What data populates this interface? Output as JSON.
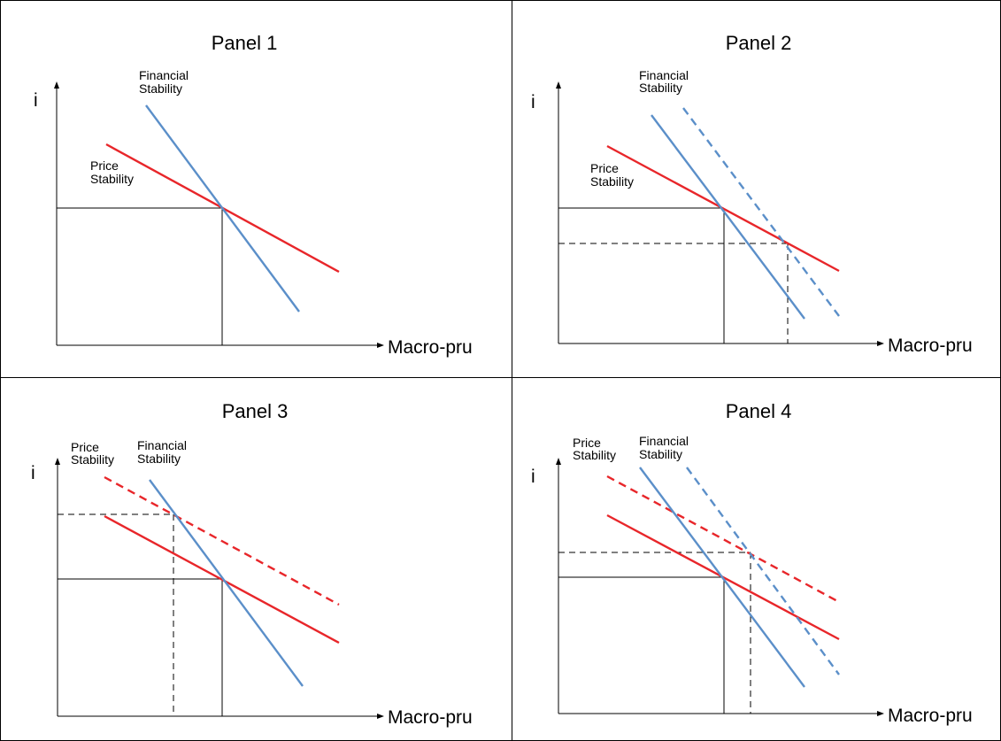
{
  "figure": {
    "colors": {
      "price_stability": "#e8262a",
      "financial_stability": "#5b8fc9",
      "reference_lines": "#000000"
    },
    "panels": [
      {
        "title": "Panel 1",
        "y_axis_label": "i",
        "x_axis_label": "Macro-pru",
        "labels": {
          "financial": [
            "Financial",
            "Stability"
          ],
          "price": [
            "Price",
            "Stability"
          ]
        }
      },
      {
        "title": "Panel 2",
        "y_axis_label": "i",
        "x_axis_label": "Macro-pru",
        "labels": {
          "financial": [
            "Financial",
            "Stability"
          ],
          "price": [
            "Price",
            "Stability"
          ]
        }
      },
      {
        "title": "Panel 3",
        "y_axis_label": "i",
        "x_axis_label": "Macro-pru",
        "labels": {
          "financial": [
            "Financial",
            "Stability"
          ],
          "price": [
            "Price",
            "Stability"
          ]
        }
      },
      {
        "title": "Panel 4",
        "y_axis_label": "i",
        "x_axis_label": "Macro-pru",
        "labels": {
          "financial": [
            "Financial",
            "Stability"
          ],
          "price": [
            "Price",
            "Stability"
          ]
        }
      }
    ]
  }
}
